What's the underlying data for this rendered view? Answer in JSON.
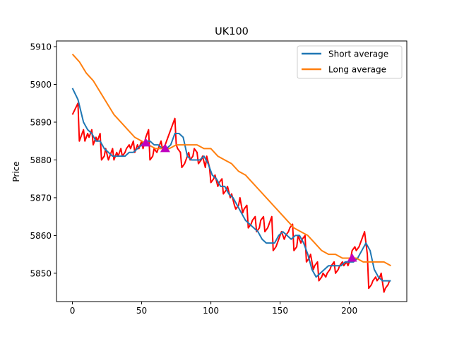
{
  "chart_data": {
    "type": "line",
    "title": "UK100",
    "xlabel": "",
    "ylabel": "Price",
    "xlim": [
      -11.5,
      241.5
    ],
    "ylim": [
      5842.5,
      5911.5
    ],
    "x_ticks": [
      0,
      50,
      100,
      150,
      200
    ],
    "y_ticks": [
      5850,
      5860,
      5870,
      5880,
      5890,
      5900,
      5910
    ],
    "grid": false,
    "legend_position": "top-right",
    "series": [
      {
        "name": "",
        "color": "#ff0000",
        "x": [
          0,
          4,
          5,
          8,
          9,
          11,
          12,
          14,
          15,
          17,
          18,
          20,
          21,
          23,
          24,
          26,
          27,
          29,
          30,
          32,
          33,
          35,
          36,
          38,
          39,
          41,
          42,
          44,
          45,
          47,
          48,
          50,
          51,
          53,
          54,
          55,
          56,
          58,
          59,
          61,
          62,
          64,
          65,
          67,
          68,
          70,
          71,
          73,
          74,
          75,
          76,
          78,
          79,
          81,
          82,
          84,
          85,
          87,
          88,
          90,
          91,
          93,
          94,
          96,
          97,
          99,
          100,
          102,
          103,
          105,
          106,
          108,
          109,
          111,
          112,
          114,
          115,
          117,
          118,
          120,
          121,
          123,
          124,
          126,
          127,
          129,
          130,
          132,
          133,
          135,
          136,
          138,
          139,
          141,
          142,
          144,
          145,
          147,
          148,
          150,
          151,
          153,
          154,
          156,
          157,
          159,
          160,
          162,
          163,
          165,
          166,
          168,
          169,
          171,
          172,
          174,
          175,
          177,
          178,
          180,
          181,
          183,
          184,
          186,
          187,
          189,
          190,
          192,
          193,
          195,
          196,
          198,
          199,
          201,
          202,
          204,
          205,
          207,
          208,
          210,
          211,
          213,
          214,
          216,
          217,
          219,
          220,
          222,
          223,
          225,
          226,
          228,
          229
        ],
        "y": [
          5892,
          5895,
          5885,
          5888,
          5885,
          5887,
          5886,
          5888,
          5884,
          5886,
          5885,
          5887,
          5880,
          5881,
          5883,
          5880,
          5881,
          5883,
          5880,
          5882,
          5881,
          5883,
          5881,
          5882,
          5883,
          5884,
          5883,
          5885,
          5882,
          5884,
          5883,
          5885,
          5883,
          5886,
          5887,
          5888,
          5880,
          5881,
          5883,
          5882,
          5883,
          5885,
          5883,
          5884,
          5885,
          5887,
          5888,
          5890,
          5891,
          5884,
          5883,
          5882,
          5878,
          5879,
          5880,
          5882,
          5880,
          5881,
          5883,
          5882,
          5879,
          5880,
          5881,
          5878,
          5881,
          5878,
          5874,
          5875,
          5876,
          5873,
          5874,
          5875,
          5871,
          5872,
          5873,
          5870,
          5871,
          5868,
          5867,
          5868,
          5870,
          5866,
          5867,
          5868,
          5862,
          5863,
          5864,
          5865,
          5861,
          5862,
          5864,
          5865,
          5861,
          5862,
          5863,
          5865,
          5856,
          5857,
          5858,
          5860,
          5861,
          5859,
          5860,
          5861,
          5862,
          5863,
          5856,
          5857,
          5860,
          5858,
          5859,
          5860,
          5853,
          5854,
          5855,
          5851,
          5852,
          5853,
          5848,
          5849,
          5850,
          5849,
          5850,
          5851,
          5852,
          5853,
          5850,
          5851,
          5852,
          5853,
          5852,
          5853,
          5852,
          5854,
          5856,
          5857,
          5856,
          5857,
          5858,
          5860,
          5861,
          5855,
          5846,
          5847,
          5848,
          5849,
          5848,
          5849,
          5850,
          5845,
          5846,
          5847,
          5848
        ]
      },
      {
        "name": "Short average",
        "color": "#1f77b4",
        "x": [
          0,
          4,
          8,
          11,
          14,
          17,
          20,
          23,
          26,
          29,
          32,
          35,
          38,
          41,
          44,
          47,
          50,
          53,
          56,
          59,
          62,
          65,
          68,
          71,
          74,
          77,
          80,
          83,
          86,
          89,
          92,
          95,
          98,
          101,
          104,
          107,
          110,
          113,
          116,
          119,
          122,
          125,
          128,
          131,
          134,
          137,
          140,
          143,
          146,
          149,
          152,
          155,
          158,
          161,
          164,
          167,
          170,
          173,
          176,
          179,
          182,
          185,
          188,
          191,
          194,
          197,
          200,
          203,
          206,
          209,
          212,
          215,
          218,
          221,
          224,
          227,
          230
        ],
        "y": [
          5899,
          5896,
          5890,
          5888,
          5887,
          5885,
          5885,
          5883,
          5882,
          5881,
          5881,
          5881,
          5881,
          5882,
          5882,
          5883,
          5884,
          5885,
          5885,
          5884,
          5884,
          5883,
          5883,
          5884,
          5887,
          5887,
          5886,
          5881,
          5880,
          5880,
          5880,
          5881,
          5879,
          5876,
          5875,
          5873,
          5873,
          5871,
          5870,
          5868,
          5866,
          5864,
          5863,
          5862,
          5861,
          5859,
          5858,
          5858,
          5858,
          5860,
          5861,
          5860,
          5859,
          5860,
          5860,
          5858,
          5855,
          5851,
          5849,
          5850,
          5851,
          5852,
          5852,
          5852,
          5852,
          5853,
          5853,
          5853,
          5854,
          5856,
          5858,
          5856,
          5851,
          5849,
          5848,
          5848,
          5848
        ]
      },
      {
        "name": "Long average",
        "color": "#ff7f0e",
        "x": [
          0,
          5,
          10,
          15,
          20,
          25,
          30,
          35,
          40,
          45,
          50,
          55,
          60,
          65,
          70,
          75,
          80,
          85,
          90,
          95,
          100,
          105,
          110,
          115,
          120,
          125,
          130,
          135,
          140,
          145,
          150,
          155,
          160,
          165,
          170,
          175,
          180,
          185,
          190,
          195,
          200,
          205,
          210,
          215,
          220,
          225,
          230
        ],
        "y": [
          5908,
          5906,
          5903,
          5901,
          5898,
          5895,
          5892,
          5890,
          5888,
          5886,
          5885,
          5884,
          5883,
          5883,
          5883,
          5884,
          5884,
          5884,
          5884,
          5883,
          5883,
          5881,
          5880,
          5879,
          5877,
          5876,
          5874,
          5872,
          5870,
          5868,
          5866,
          5864,
          5862,
          5861,
          5860,
          5858,
          5856,
          5855,
          5855,
          5854,
          5854,
          5854,
          5853,
          5853,
          5853,
          5853,
          5852
        ]
      }
    ],
    "markers": {
      "color": "#bf00bf",
      "shape": "triangle-up",
      "x": [
        53,
        67,
        202
      ],
      "y": [
        5884.5,
        5883,
        5854
      ]
    }
  }
}
